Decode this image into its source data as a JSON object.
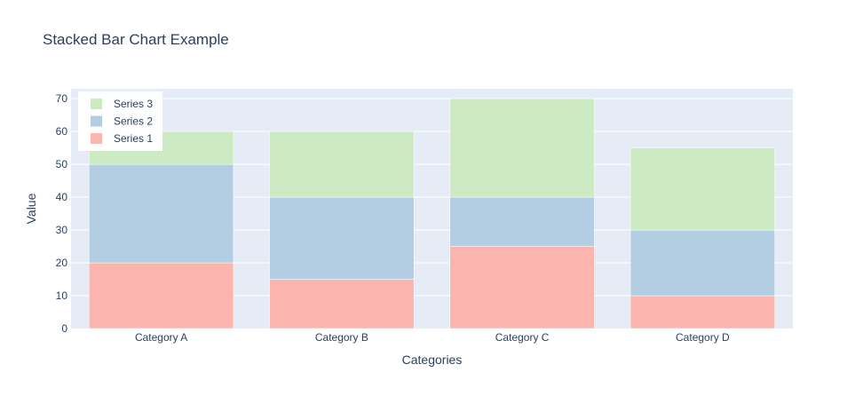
{
  "chart_data": {
    "type": "bar",
    "barmode": "stack",
    "title": "Stacked Bar Chart Example",
    "xlabel": "Categories",
    "ylabel": "Value",
    "categories": [
      "Category A",
      "Category B",
      "Category C",
      "Category D"
    ],
    "ylim": [
      0,
      73
    ],
    "yticks": [
      0,
      10,
      20,
      30,
      40,
      50,
      60,
      70
    ],
    "grid": true,
    "legend_position": "top-left",
    "series": [
      {
        "name": "Series 1",
        "values": [
          20,
          15,
          25,
          10
        ],
        "color": "#fbb4ae"
      },
      {
        "name": "Series 2",
        "values": [
          30,
          25,
          15,
          20
        ],
        "color": "#b3cde3"
      },
      {
        "name": "Series 3",
        "values": [
          10,
          20,
          30,
          25
        ],
        "color": "#ccebc5"
      }
    ],
    "plot_background": "#e5ecf6",
    "text_color": "#2a3f5f"
  }
}
